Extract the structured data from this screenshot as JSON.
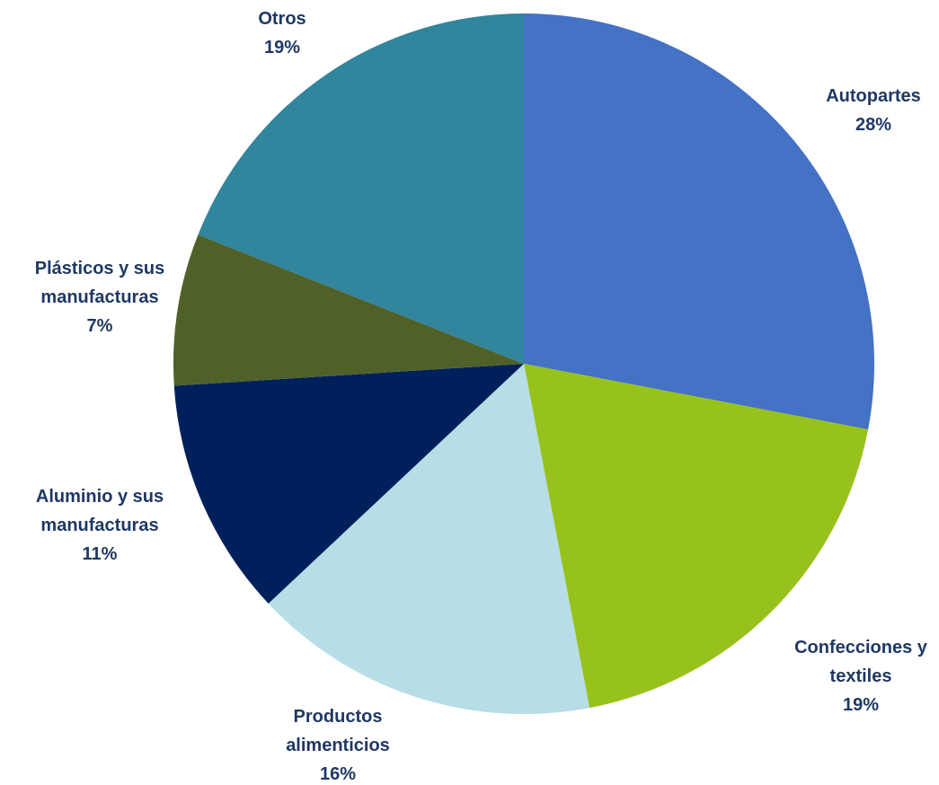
{
  "chart_data": {
    "type": "pie",
    "title": "",
    "label_color": "#1f3864",
    "start_angle_deg": 0,
    "direction": "clockwise",
    "legend": "none",
    "slices": [
      {
        "name": "Autopartes",
        "label_lines": [
          "Autopartes"
        ],
        "percent_label": "28%",
        "value": 28,
        "color": "#4472c4"
      },
      {
        "name": "Confecciones y textiles",
        "label_lines": [
          "Confecciones y",
          "textiles"
        ],
        "percent_label": "19%",
        "value": 19,
        "color": "#97c21b"
      },
      {
        "name": "Productos alimenticios",
        "label_lines": [
          "Productos",
          "alimenticios"
        ],
        "percent_label": "16%",
        "value": 16,
        "color": "#b7dde7"
      },
      {
        "name": "Aluminio y sus manufacturas",
        "label_lines": [
          "Aluminio y sus",
          "manufacturas"
        ],
        "percent_label": "11%",
        "value": 11,
        "color": "#00205c"
      },
      {
        "name": "Plásticos y sus manufacturas",
        "label_lines": [
          "Plásticos y sus",
          "manufacturas"
        ],
        "percent_label": "7%",
        "value": 7,
        "color": "#4f6128"
      },
      {
        "name": "Otros",
        "label_lines": [
          "Otros"
        ],
        "percent_label": "19%",
        "value": 19,
        "color": "#31859c"
      }
    ]
  }
}
